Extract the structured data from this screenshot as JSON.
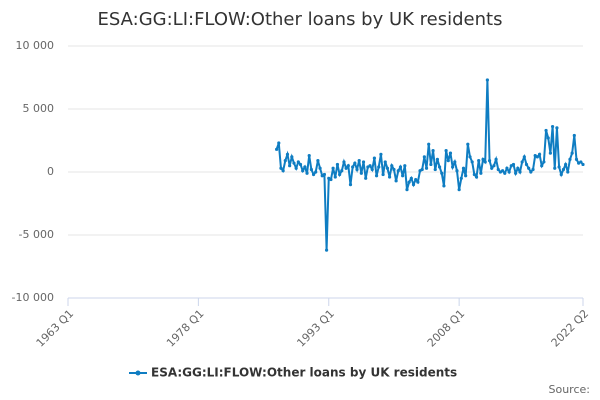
{
  "chart_data": {
    "type": "line",
    "title": "ESA:GG:LI:FLOW:Other loans by UK residents",
    "source_label": "Source:",
    "x": [
      "1987 Q1",
      "1987 Q2",
      "1987 Q3",
      "1987 Q4",
      "1988 Q1",
      "1988 Q2",
      "1988 Q3",
      "1988 Q4",
      "1989 Q1",
      "1989 Q2",
      "1989 Q3",
      "1989 Q4",
      "1990 Q1",
      "1990 Q2",
      "1990 Q3",
      "1990 Q4",
      "1991 Q1",
      "1991 Q2",
      "1991 Q3",
      "1991 Q4",
      "1992 Q1",
      "1992 Q2",
      "1992 Q3",
      "1992 Q4",
      "1993 Q1",
      "1993 Q2",
      "1993 Q3",
      "1993 Q4",
      "1994 Q1",
      "1994 Q2",
      "1994 Q3",
      "1994 Q4",
      "1995 Q1",
      "1995 Q2",
      "1995 Q3",
      "1995 Q4",
      "1996 Q1",
      "1996 Q2",
      "1996 Q3",
      "1996 Q4",
      "1997 Q1",
      "1997 Q2",
      "1997 Q3",
      "1997 Q4",
      "1998 Q1",
      "1998 Q2",
      "1998 Q3",
      "1998 Q4",
      "1999 Q1",
      "1999 Q2",
      "1999 Q3",
      "1999 Q4",
      "2000 Q1",
      "2000 Q2",
      "2000 Q3",
      "2000 Q4",
      "2001 Q1",
      "2001 Q2",
      "2001 Q3",
      "2001 Q4",
      "2002 Q1",
      "2002 Q2",
      "2002 Q3",
      "2002 Q4",
      "2003 Q1",
      "2003 Q2",
      "2003 Q3",
      "2003 Q4",
      "2004 Q1",
      "2004 Q2",
      "2004 Q3",
      "2004 Q4",
      "2005 Q1",
      "2005 Q2",
      "2005 Q3",
      "2005 Q4",
      "2006 Q1",
      "2006 Q2",
      "2006 Q3",
      "2006 Q4",
      "2007 Q1",
      "2007 Q2",
      "2007 Q3",
      "2007 Q4",
      "2008 Q1",
      "2008 Q2",
      "2008 Q3",
      "2008 Q4",
      "2009 Q1",
      "2009 Q2",
      "2009 Q3",
      "2009 Q4",
      "2010 Q1",
      "2010 Q2",
      "2010 Q3",
      "2010 Q4",
      "2011 Q1",
      "2011 Q2",
      "2011 Q3",
      "2011 Q4",
      "2012 Q1",
      "2012 Q2",
      "2012 Q3",
      "2012 Q4",
      "2013 Q1",
      "2013 Q2",
      "2013 Q3",
      "2013 Q4",
      "2014 Q1",
      "2014 Q2",
      "2014 Q3",
      "2014 Q4",
      "2015 Q1",
      "2015 Q2",
      "2015 Q3",
      "2015 Q4",
      "2016 Q1",
      "2016 Q2",
      "2016 Q3",
      "2016 Q4",
      "2017 Q1",
      "2017 Q2",
      "2017 Q3",
      "2017 Q4",
      "2018 Q1",
      "2018 Q2",
      "2018 Q3",
      "2018 Q4",
      "2019 Q1",
      "2019 Q2",
      "2019 Q3",
      "2019 Q4",
      "2020 Q1",
      "2020 Q2",
      "2020 Q3",
      "2020 Q4",
      "2021 Q1",
      "2021 Q2",
      "2021 Q3",
      "2021 Q4",
      "2022 Q1",
      "2022 Q2"
    ],
    "series": [
      {
        "name": "ESA:GG:LI:FLOW:Other loans by UK residents",
        "color": "#0f7dc2",
        "values": [
          1800,
          2300,
          300,
          100,
          900,
          1400,
          500,
          1200,
          700,
          300,
          800,
          600,
          100,
          400,
          -100,
          1300,
          200,
          -200,
          0,
          900,
          300,
          -300,
          -200,
          -6200,
          -500,
          -600,
          300,
          -400,
          600,
          -200,
          100,
          800,
          300,
          500,
          -1000,
          400,
          700,
          200,
          900,
          -100,
          800,
          -500,
          400,
          500,
          200,
          1100,
          -300,
          400,
          1400,
          -200,
          800,
          300,
          -400,
          500,
          200,
          -700,
          100,
          400,
          -300,
          500,
          -1400,
          -800,
          -500,
          -1000,
          -600,
          -800,
          100,
          200,
          1200,
          300,
          2200,
          600,
          1700,
          200,
          1000,
          400,
          -100,
          -1100,
          1700,
          900,
          1500,
          400,
          800,
          100,
          -1400,
          -500,
          300,
          -300,
          2200,
          1200,
          800,
          -200,
          -400,
          900,
          -100,
          1000,
          800,
          7300,
          900,
          300,
          500,
          1000,
          200,
          0,
          100,
          -100,
          300,
          0,
          500,
          600,
          -100,
          300,
          0,
          800,
          1200,
          600,
          300,
          0,
          200,
          1300,
          1200,
          1400,
          500,
          800,
          3300,
          2700,
          1500,
          3600,
          300,
          3500,
          400,
          -200,
          200,
          600,
          0,
          1000,
          1500,
          2900,
          1000,
          700,
          800,
          600
        ]
      }
    ],
    "xlim": [
      "1963 Q1",
      "2022 Q2"
    ],
    "xticks": [
      "1963 Q1",
      "1978 Q1",
      "1993 Q1",
      "2008 Q1",
      "2022 Q2"
    ],
    "ylim": [
      -10000,
      10000
    ],
    "yticks": [
      {
        "value": -10000,
        "label": "-10 000"
      },
      {
        "value": -5000,
        "label": "-5 000"
      },
      0,
      {
        "value": 5000,
        "label": "5 000"
      },
      {
        "value": 10000,
        "label": "10 000"
      }
    ],
    "grid": true
  }
}
